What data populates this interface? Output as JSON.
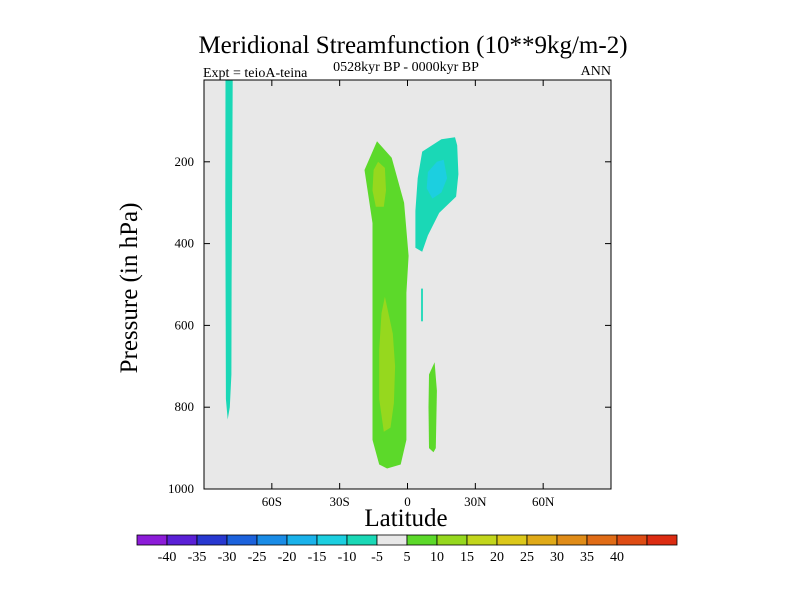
{
  "chart_data": {
    "type": "heatmap",
    "subtype": "filled-contour",
    "title": "Meridional Streamfunction (10**9kg/m-2)",
    "left_string": "Expt = teioA-teina",
    "center_string": "0528kyr BP - 0000kyr BP",
    "right_string": "ANN",
    "xlabel": "Latitude",
    "ylabel": "Pressure (in hPa)",
    "xlim": [
      -90,
      90
    ],
    "ylim": [
      1000,
      0
    ],
    "x_ticks": [
      {
        "value": -60,
        "label": "60S"
      },
      {
        "value": -30,
        "label": "30S"
      },
      {
        "value": 0,
        "label": "0"
      },
      {
        "value": 30,
        "label": "30N"
      },
      {
        "value": 60,
        "label": "60N"
      }
    ],
    "y_ticks": [
      {
        "value": 200,
        "label": "200"
      },
      {
        "value": 400,
        "label": "400"
      },
      {
        "value": 600,
        "label": "600"
      },
      {
        "value": 800,
        "label": "800"
      },
      {
        "value": 1000,
        "label": "1000"
      }
    ],
    "background_color": "#e8e8e8",
    "colorbar": {
      "colors": [
        "#8c1cd8",
        "#5a20d6",
        "#2838d0",
        "#1c62dc",
        "#1a8ce6",
        "#1ab2ea",
        "#1ccfe0",
        "#1ad8b6",
        "#e8e8e8",
        "#5cd92a",
        "#96d81e",
        "#c2d61c",
        "#dcc81a",
        "#e0aa18",
        "#e08c18",
        "#e06c16",
        "#de4c14",
        "#dc2c12"
      ],
      "labels": [
        "-40",
        "-35",
        "-30",
        "-25",
        "-20",
        "-15",
        "-10",
        "-5",
        "5",
        "10",
        "15",
        "20",
        "25",
        "30",
        "35",
        "40"
      ]
    },
    "regions": [
      {
        "name": "sh-polar-column-negative",
        "level": -5,
        "color": "#1ad8b6",
        "points": [
          [
            -80.5,
            0
          ],
          [
            -77.3,
            0
          ],
          [
            -77.5,
            200
          ],
          [
            -77.8,
            500
          ],
          [
            -77.9,
            720
          ],
          [
            -78.6,
            800
          ],
          [
            -79.5,
            830
          ],
          [
            -80.3,
            780
          ],
          [
            -80.4,
            600
          ],
          [
            -80.6,
            300
          ]
        ]
      },
      {
        "name": "tropical-positive-main",
        "level": 5,
        "color": "#5cd92a",
        "points": [
          [
            -13.5,
            150
          ],
          [
            -7,
            190
          ],
          [
            -1.5,
            300
          ],
          [
            0.5,
            430
          ],
          [
            -0.5,
            520
          ],
          [
            -0.5,
            700
          ],
          [
            -0.5,
            880
          ],
          [
            -3,
            940
          ],
          [
            -9,
            950
          ],
          [
            -12.5,
            940
          ],
          [
            -15.5,
            880
          ],
          [
            -15.5,
            500
          ],
          [
            -15.5,
            350
          ],
          [
            -19,
            220
          ]
        ]
      },
      {
        "name": "tropical-positive-upper-core",
        "level": 10,
        "color": "#96d81e",
        "points": [
          [
            -13,
            200
          ],
          [
            -10,
            215
          ],
          [
            -9.5,
            270
          ],
          [
            -10.5,
            310
          ],
          [
            -14,
            310
          ],
          [
            -15.5,
            270
          ],
          [
            -15,
            220
          ]
        ]
      },
      {
        "name": "tropical-positive-lower-core",
        "level": 10,
        "color": "#96d81e",
        "points": [
          [
            -10,
            530
          ],
          [
            -6.5,
            620
          ],
          [
            -5.5,
            700
          ],
          [
            -6,
            790
          ],
          [
            -7.5,
            850
          ],
          [
            -10.5,
            860
          ],
          [
            -12.5,
            780
          ],
          [
            -12.5,
            660
          ],
          [
            -11.5,
            570
          ]
        ]
      },
      {
        "name": "nh-subtropical-upper-negative",
        "level": -5,
        "color": "#1ad8b6",
        "points": [
          [
            6.5,
            175
          ],
          [
            15,
            145
          ],
          [
            21,
            140
          ],
          [
            22,
            160
          ],
          [
            22.5,
            230
          ],
          [
            21.5,
            285
          ],
          [
            14,
            325
          ],
          [
            9,
            380
          ],
          [
            6.5,
            420
          ],
          [
            3.5,
            410
          ],
          [
            3.5,
            320
          ],
          [
            4.5,
            240
          ]
        ]
      },
      {
        "name": "nh-subtropical-upper-core",
        "level": -10,
        "color": "#1ccfe0",
        "points": [
          [
            9,
            225
          ],
          [
            13,
            200
          ],
          [
            16,
            195
          ],
          [
            17.5,
            240
          ],
          [
            15,
            275
          ],
          [
            11,
            290
          ],
          [
            8.5,
            265
          ]
        ]
      },
      {
        "name": "nh-thin-negative-sliver",
        "level": -5,
        "color": "#1ad8b6",
        "points": [
          [
            6,
            510
          ],
          [
            6.8,
            510
          ],
          [
            6.8,
            590
          ],
          [
            6,
            590
          ]
        ]
      },
      {
        "name": "nh-lower-positive",
        "level": 5,
        "color": "#5cd92a",
        "points": [
          [
            9.5,
            720
          ],
          [
            12,
            690
          ],
          [
            13,
            760
          ],
          [
            12.5,
            900
          ],
          [
            11.5,
            910
          ],
          [
            9.5,
            900
          ],
          [
            9.3,
            800
          ]
        ]
      }
    ]
  }
}
